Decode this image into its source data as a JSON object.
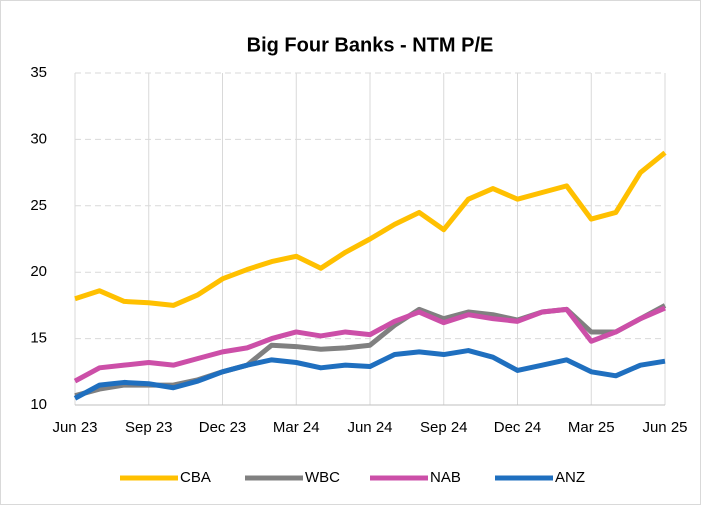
{
  "chart_data": {
    "type": "line",
    "title": "Big Four Banks - NTM P/E",
    "x": [
      0,
      1,
      2,
      3,
      4,
      5,
      6,
      7,
      8,
      9,
      10,
      11,
      12,
      13,
      14,
      15,
      16,
      17,
      18,
      19,
      20,
      21,
      22,
      23,
      24
    ],
    "xlim": [
      0,
      24
    ],
    "xticks": [
      {
        "value": 0,
        "label": "Jun 23"
      },
      {
        "value": 3,
        "label": "Sep 23"
      },
      {
        "value": 6,
        "label": "Dec 23"
      },
      {
        "value": 9,
        "label": "Mar 24"
      },
      {
        "value": 12,
        "label": "Jun 24"
      },
      {
        "value": 15,
        "label": "Sep 24"
      },
      {
        "value": 18,
        "label": "Dec 24"
      },
      {
        "value": 21,
        "label": "Mar 25"
      },
      {
        "value": 24,
        "label": "Jun 25"
      }
    ],
    "ylim": [
      10,
      35
    ],
    "yticks": [
      10,
      15,
      20,
      25,
      30,
      35
    ],
    "grid": true,
    "legend": "bottom",
    "series": [
      {
        "name": "CBA",
        "color": "#ffc000",
        "values": [
          18,
          18.6,
          17.8,
          17.7,
          17.5,
          18.3,
          19.5,
          20.2,
          20.8,
          21.2,
          20.3,
          21.5,
          22.5,
          23.6,
          24.5,
          23.2,
          25.5,
          26.3,
          25.5,
          26,
          26.5,
          24,
          24.5,
          27.5,
          29
        ]
      },
      {
        "name": "WBC",
        "color": "#808080",
        "values": [
          10.7,
          11.2,
          11.5,
          11.5,
          11.5,
          11.9,
          12.5,
          13,
          14.5,
          14.4,
          14.2,
          14.3,
          14.5,
          16,
          17.2,
          16.5,
          17,
          16.8,
          16.4,
          17,
          17.2,
          15.5,
          15.5,
          16.5,
          17.5
        ]
      },
      {
        "name": "NAB",
        "color": "#cc4fa8",
        "values": [
          11.8,
          12.8,
          13,
          13.2,
          13,
          13.5,
          14,
          14.3,
          15,
          15.5,
          15.2,
          15.5,
          15.3,
          16.3,
          17,
          16.2,
          16.8,
          16.5,
          16.3,
          17,
          17.2,
          14.8,
          15.5,
          16.5,
          17.3
        ]
      },
      {
        "name": "ANZ",
        "color": "#1f6fbf",
        "values": [
          10.5,
          11.5,
          11.7,
          11.6,
          11.3,
          11.8,
          12.5,
          13,
          13.4,
          13.2,
          12.8,
          13,
          12.9,
          13.8,
          14,
          13.8,
          14.1,
          13.6,
          12.6,
          13,
          13.4,
          12.5,
          12.2,
          13,
          13.3
        ]
      }
    ]
  }
}
